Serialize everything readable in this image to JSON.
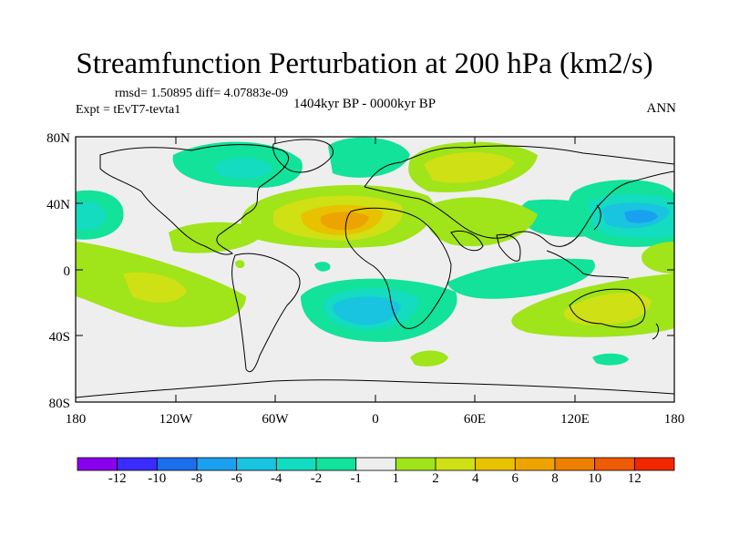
{
  "title": "Streamfunction Perturbation at 200 hPa (km2/s)",
  "stats_line": "rmsd= 1.50895 diff= 4.07883e-09",
  "experiment": "Expt = tEvT7-tevta1",
  "period": "1404kyr BP - 0000kyr BP",
  "season": "ANN",
  "map": {
    "y_ticks": [
      "80N",
      "40N",
      "0",
      "40S",
      "80S"
    ],
    "x_ticks": [
      "180",
      "120W",
      "60W",
      "0",
      "60E",
      "120E",
      "180"
    ]
  },
  "colorbar": {
    "colors": [
      "#8a00ee",
      "#3c2bff",
      "#1b6eec",
      "#1aa0f0",
      "#18c4e0",
      "#13dcc0",
      "#12e29a",
      "#eeeeee",
      "#a0e41a",
      "#cfe015",
      "#e8c200",
      "#eea400",
      "#ef7f00",
      "#f05a00",
      "#f02800"
    ],
    "labels": [
      "-12",
      "-10",
      "-8",
      "-6",
      "-4",
      "-2",
      "-1",
      "1",
      "2",
      "4",
      "6",
      "8",
      "10",
      "12"
    ]
  }
}
